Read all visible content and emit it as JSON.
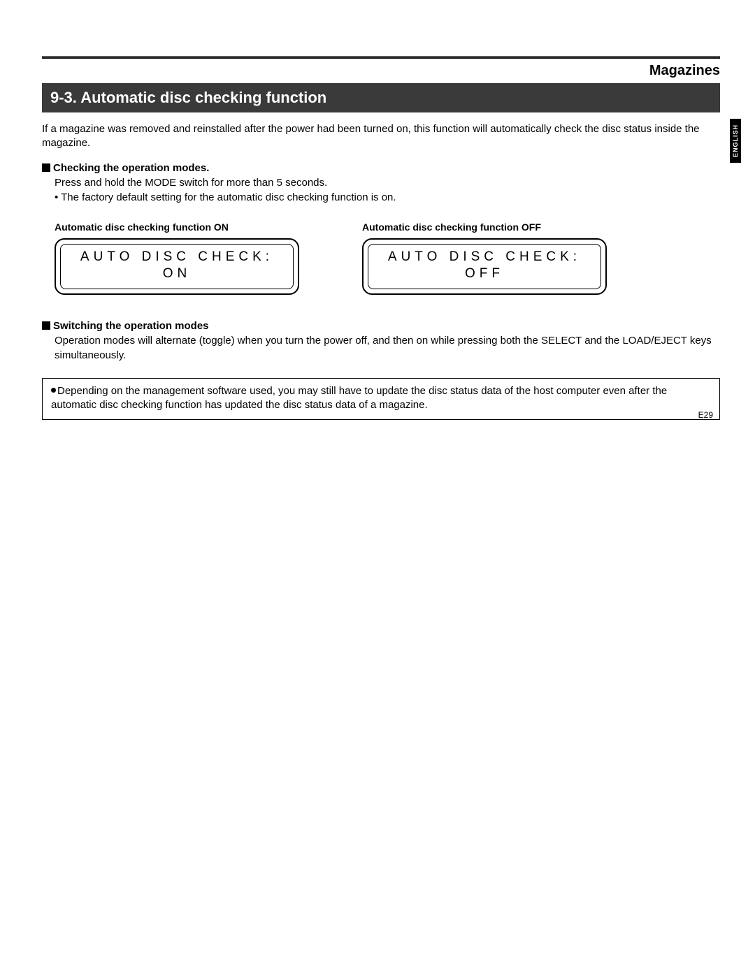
{
  "header": {
    "category": "Magazines"
  },
  "sideTab": "ENGLISH",
  "section": {
    "title": "9-3. Automatic disc checking function"
  },
  "intro": "If a magazine was removed and reinstalled after the power had been turned on, this function will automatically check the disc status inside the magazine.",
  "checking": {
    "heading": "Checking the operation modes.",
    "line1": "Press and hold the MODE switch for more than 5 seconds.",
    "bullet": "• The factory default setting for the automatic disc checking function is on."
  },
  "displays": {
    "on": {
      "caption": "Automatic disc checking function ON",
      "line1": "AUTO DISC CHECK:",
      "line2": "ON"
    },
    "off": {
      "caption": "Automatic disc checking function OFF",
      "line1": "AUTO DISC CHECK:",
      "line2": "OFF"
    }
  },
  "switching": {
    "heading": "Switching the operation modes",
    "body": "Operation modes will alternate (toggle) when you turn the power off, and then on while pressing both the SELECT and the LOAD/EJECT keys simultaneously."
  },
  "note": "Depending on the management software used, you may still have to update the disc status data of the host computer even after the automatic disc checking function has updated the disc status data of a magazine.",
  "pageNumber": "E29"
}
